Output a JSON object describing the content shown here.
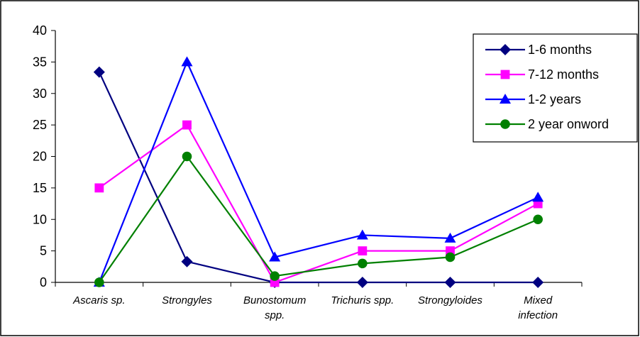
{
  "chart_data": {
    "type": "line",
    "categories": [
      [
        "Ascaris sp."
      ],
      [
        "Strongyles"
      ],
      [
        "Bunostomum",
        "spp."
      ],
      [
        "Trichuris spp."
      ],
      [
        "Strongyloides"
      ],
      [
        "Mixed",
        "infection"
      ]
    ],
    "ylim": [
      0,
      40
    ],
    "yticks": [
      0,
      5,
      10,
      15,
      20,
      25,
      30,
      35,
      40
    ],
    "grid": false,
    "legend_position": "top-right",
    "series": [
      {
        "name": "1-6 months",
        "color": "#000080",
        "marker": "diamond",
        "values": [
          33.4,
          3.3,
          0,
          0,
          0,
          0
        ]
      },
      {
        "name": "7-12 months",
        "color": "#FF00FF",
        "marker": "square",
        "values": [
          15,
          25,
          0,
          5,
          5,
          12.5
        ]
      },
      {
        "name": "1-2 years",
        "color": "#0000FF",
        "marker": "triangle",
        "values": [
          0,
          35,
          4,
          7.5,
          7,
          13.5
        ]
      },
      {
        "name": "2 year onword",
        "color": "#008000",
        "marker": "circle",
        "values": [
          0,
          20,
          1,
          3,
          4,
          10
        ]
      }
    ]
  }
}
